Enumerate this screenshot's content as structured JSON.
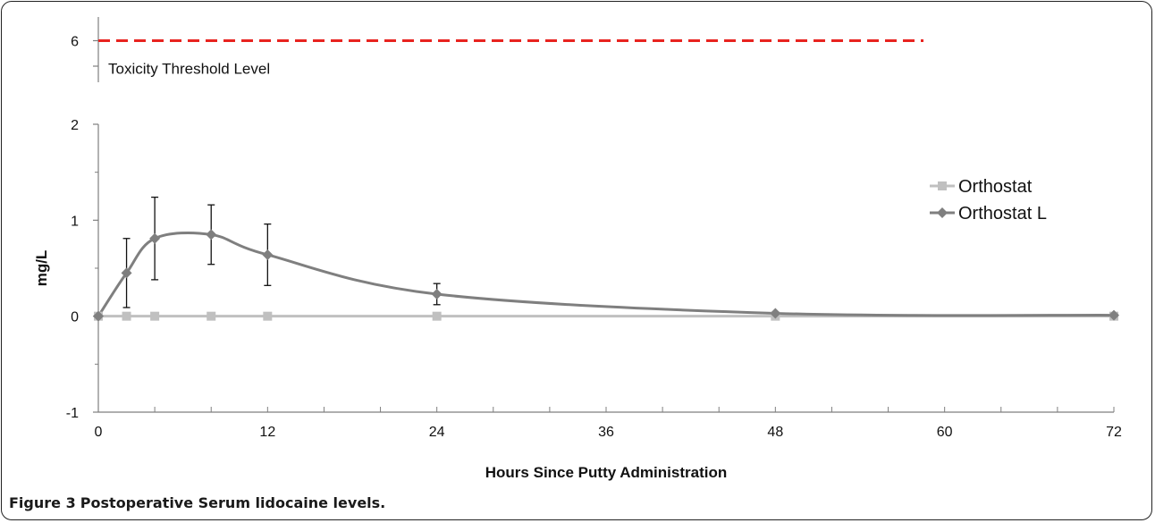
{
  "caption": {
    "label": "Figure 3",
    "text": "Postoperative Serum lidocaine levels."
  },
  "chart_data": {
    "type": "line",
    "xlabel": "Hours Since Putty Administration",
    "ylabel": "mg/L",
    "xlim": [
      0,
      72
    ],
    "ylim_main": [
      -1,
      2
    ],
    "ylim_top_segment": [
      5.5,
      6.5
    ],
    "axis_break": true,
    "x_ticks": [
      "0",
      "12",
      "24",
      "36",
      "48",
      "60",
      "72"
    ],
    "y_ticks_main": [
      "-1",
      "0",
      "1",
      "2"
    ],
    "y_ticks_top": [
      "6"
    ],
    "threshold": {
      "value": 6,
      "label": "Toxicity Threshold Level",
      "color": "#e8231f",
      "style": "dashed"
    },
    "legend_position": "right",
    "series": [
      {
        "name": "Orthostat",
        "color": "#c0c0c0",
        "marker": "square",
        "smooth": false,
        "points": [
          {
            "x": 0,
            "y": 0
          },
          {
            "x": 2,
            "y": 0
          },
          {
            "x": 4,
            "y": 0
          },
          {
            "x": 8,
            "y": 0
          },
          {
            "x": 12,
            "y": 0
          },
          {
            "x": 24,
            "y": 0
          },
          {
            "x": 48,
            "y": 0
          },
          {
            "x": 72,
            "y": 0
          }
        ]
      },
      {
        "name": "Orthostat L",
        "color": "#7f7f7f",
        "marker": "diamond",
        "smooth": true,
        "points": [
          {
            "x": 0,
            "y": 0,
            "err": null
          },
          {
            "x": 2,
            "y": 0.45,
            "err": 0.36
          },
          {
            "x": 4,
            "y": 0.81,
            "err": 0.43
          },
          {
            "x": 8,
            "y": 0.85,
            "err": 0.31
          },
          {
            "x": 12,
            "y": 0.64,
            "err": 0.32
          },
          {
            "x": 24,
            "y": 0.23,
            "err": 0.11
          },
          {
            "x": 48,
            "y": 0.03,
            "err": null
          },
          {
            "x": 72,
            "y": 0.01,
            "err": null
          }
        ]
      }
    ]
  }
}
